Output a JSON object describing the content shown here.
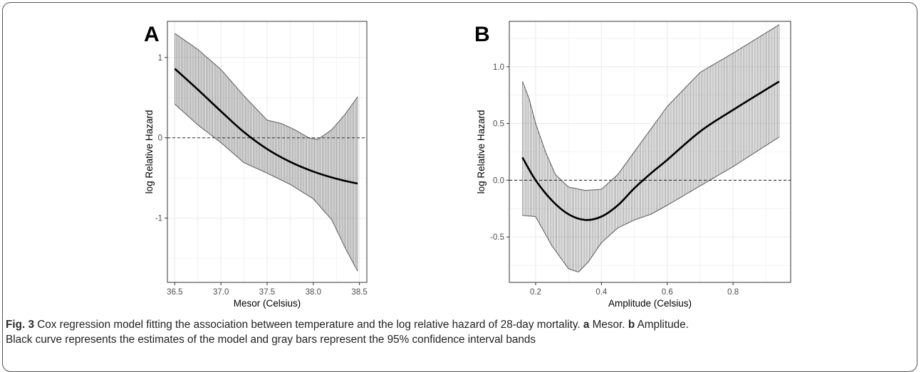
{
  "chart_data": [
    {
      "type": "line",
      "panel_label": "A",
      "xlabel": "Mesor (Celsius)",
      "ylabel": "log Relative Hazard",
      "xlim": [
        36.42,
        38.58
      ],
      "ylim": [
        -1.8,
        1.45
      ],
      "xticks": [
        36.5,
        37.0,
        37.5,
        38.0,
        38.5
      ],
      "xtick_labels": [
        "36.5",
        "37.0",
        "37.5",
        "38.0",
        "38.5"
      ],
      "yticks": [
        -1,
        0,
        1
      ],
      "ytick_labels": [
        "-1",
        "0",
        "1"
      ],
      "reference_line": 0,
      "grid": true,
      "series": [
        {
          "role": "estimate",
          "x": [
            36.5,
            36.75,
            37.0,
            37.25,
            37.5,
            37.75,
            38.0,
            38.25,
            38.48
          ],
          "y": [
            0.86,
            0.6,
            0.33,
            0.07,
            -0.14,
            -0.3,
            -0.42,
            -0.51,
            -0.57
          ]
        },
        {
          "role": "ci_upper",
          "x": [
            36.5,
            36.75,
            37.0,
            37.25,
            37.5,
            37.65,
            37.8,
            37.95,
            38.05,
            38.2,
            38.35,
            38.48
          ],
          "y": [
            1.3,
            1.1,
            0.85,
            0.52,
            0.22,
            0.18,
            0.1,
            0.0,
            -0.02,
            0.1,
            0.3,
            0.51
          ]
        },
        {
          "role": "ci_lower",
          "x": [
            36.5,
            36.75,
            37.0,
            37.25,
            37.5,
            37.75,
            38.0,
            38.2,
            38.35,
            38.48
          ],
          "y": [
            0.42,
            0.16,
            -0.06,
            -0.31,
            -0.44,
            -0.58,
            -0.76,
            -1.02,
            -1.38,
            -1.66
          ]
        }
      ]
    },
    {
      "type": "line",
      "panel_label": "B",
      "xlabel": "Amplitude (Celsius)",
      "ylabel": "log Relative Hazard",
      "xlim": [
        0.12,
        0.975
      ],
      "ylim": [
        -0.9,
        1.4
      ],
      "xticks": [
        0.2,
        0.4,
        0.6,
        0.8
      ],
      "xtick_labels": [
        "0.2",
        "0.4",
        "0.6",
        "0.8"
      ],
      "yticks": [
        -0.5,
        0.0,
        0.5,
        1.0
      ],
      "ytick_labels": [
        "-0.5",
        "0.0",
        "0.5",
        "1.0"
      ],
      "reference_line": 0,
      "grid": true,
      "series": [
        {
          "role": "estimate",
          "x": [
            0.16,
            0.2,
            0.25,
            0.3,
            0.35,
            0.4,
            0.45,
            0.5,
            0.55,
            0.6,
            0.7,
            0.8,
            0.94
          ],
          "y": [
            0.2,
            0.0,
            -0.18,
            -0.3,
            -0.35,
            -0.32,
            -0.22,
            -0.07,
            0.06,
            0.18,
            0.43,
            0.62,
            0.87
          ]
        },
        {
          "role": "ci_upper",
          "x": [
            0.16,
            0.18,
            0.2,
            0.23,
            0.26,
            0.3,
            0.35,
            0.4,
            0.45,
            0.5,
            0.6,
            0.7,
            0.8,
            0.94
          ],
          "y": [
            0.87,
            0.72,
            0.5,
            0.25,
            0.05,
            -0.06,
            -0.09,
            -0.08,
            0.05,
            0.25,
            0.65,
            0.95,
            1.12,
            1.37
          ]
        },
        {
          "role": "ci_lower",
          "x": [
            0.16,
            0.2,
            0.25,
            0.3,
            0.33,
            0.36,
            0.4,
            0.45,
            0.5,
            0.55,
            0.6,
            0.7,
            0.8,
            0.94
          ],
          "y": [
            -0.31,
            -0.32,
            -0.58,
            -0.78,
            -0.81,
            -0.72,
            -0.55,
            -0.42,
            -0.35,
            -0.3,
            -0.22,
            -0.05,
            0.12,
            0.38
          ]
        }
      ]
    }
  ],
  "caption": {
    "fig_label": "Fig. 3",
    "text_1": " Cox regression model fitting the association between temperature and the log relative hazard of 28-day mortality. ",
    "a_label": "a",
    "text_2": " Mesor. ",
    "b_label": "b",
    "text_3": " Amplitude.",
    "line_2": "Black curve represents the estimates of the model and gray bars represent the 95% confidence interval bands"
  },
  "colors": {
    "panel_background": "#ffffff",
    "grid": "#ebebeb",
    "ci_bars": "#8c8c8c",
    "ci_edge": "#6e6e6e",
    "estimate_line": "#000000",
    "reference_line": "#333333",
    "panel_border": "#333333"
  }
}
